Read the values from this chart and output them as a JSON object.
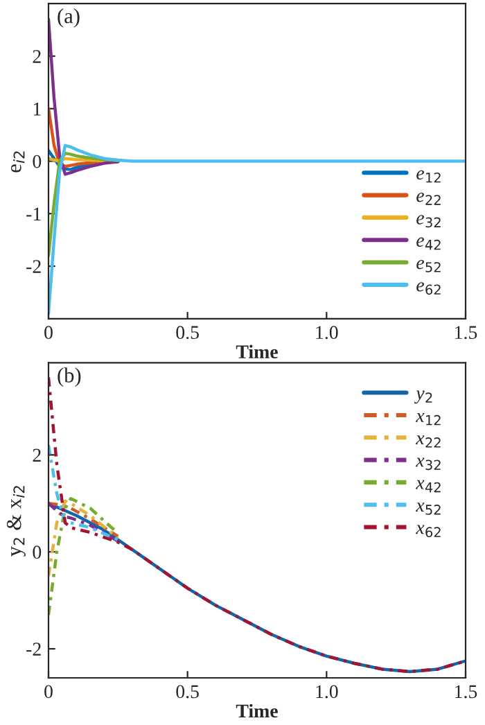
{
  "chart_data": [
    {
      "type": "line",
      "xlabel": "Time",
      "ylabel": "e$_{i2}$",
      "annotations": [
        "(a)"
      ],
      "xlim": [
        0,
        1.5
      ],
      "ylim": [
        -3,
        3
      ],
      "xticks": [
        0,
        0.5,
        {
          "value": 1,
          "label": "1.0"
        },
        1.5
      ],
      "yticks": [
        -2,
        -1,
        0,
        1,
        2
      ],
      "legend": "lower right",
      "grid": false,
      "x": [
        0,
        0.02,
        0.04,
        0.06,
        0.08,
        0.1,
        0.15,
        0.2,
        0.25,
        0.3,
        0.4,
        1.5
      ],
      "series": [
        {
          "name": "e$_{12}$",
          "color": "#0072bd",
          "line_style": "solid",
          "values": [
            0.2,
            0.05,
            -0.1,
            -0.15,
            -0.16,
            -0.12,
            -0.06,
            -0.02,
            -0.01,
            null,
            null,
            null
          ]
        },
        {
          "name": "e$_{22}$",
          "color": "#d95319",
          "line_style": "solid",
          "values": [
            1.0,
            0.3,
            -0.05,
            -0.1,
            -0.08,
            -0.06,
            -0.03,
            -0.01,
            0,
            null,
            null,
            null
          ]
        },
        {
          "name": "e$_{32}$",
          "color": "#edb120",
          "line_style": "solid",
          "values": [
            0.05,
            0.02,
            0,
            0.05,
            0.04,
            0.03,
            0.02,
            0.01,
            0,
            null,
            null,
            null
          ]
        },
        {
          "name": "e$_{42}$",
          "color": "#7e2f8e",
          "line_style": "solid",
          "values": [
            2.7,
            1.2,
            0.1,
            -0.25,
            -0.22,
            -0.18,
            -0.1,
            -0.04,
            -0.01,
            null,
            null,
            null
          ]
        },
        {
          "name": "e$_{52}$",
          "color": "#77ac30",
          "line_style": "solid",
          "values": [
            -1.8,
            -0.8,
            0,
            0.15,
            0.13,
            0.1,
            0.06,
            0.03,
            0.01,
            null,
            null,
            null
          ]
        },
        {
          "name": "e$_{62}$",
          "color": "#4dbeee",
          "line_style": "solid",
          "values": [
            -2.9,
            -1.5,
            -0.2,
            0.3,
            0.27,
            0.22,
            0.12,
            0.05,
            0.02,
            0,
            0,
            0
          ]
        }
      ]
    },
    {
      "type": "line",
      "xlabel": "Time",
      "ylabel": "y$_{2}$ & x$_{i2}$",
      "annotations": [
        "(b)"
      ],
      "xlim": [
        0,
        1.5
      ],
      "ylim": [
        -2.6,
        3.9
      ],
      "xticks": [
        0,
        0.5,
        {
          "value": 1,
          "label": "1.0"
        },
        1.5
      ],
      "yticks": [
        -2,
        0,
        2
      ],
      "legend": "top right",
      "grid": false,
      "series": [
        {
          "name": "y$_{2}$",
          "color": "#1166aa",
          "line_style": "solid",
          "x": [
            0,
            0.1,
            0.2,
            0.3,
            0.4,
            0.5,
            0.6,
            0.7,
            0.8,
            0.9,
            1.0,
            1.1,
            1.2,
            1.3,
            1.4,
            1.5
          ],
          "values": [
            1.0,
            0.75,
            0.45,
            0.05,
            -0.35,
            -0.75,
            -1.1,
            -1.4,
            -1.7,
            -1.95,
            -2.15,
            -2.3,
            -2.42,
            -2.47,
            -2.42,
            -2.25
          ]
        },
        {
          "name": "x$_{12}$",
          "color": "#cc5c2a",
          "line_style": "dashdot",
          "x": [
            0,
            0.03,
            0.06,
            0.08,
            0.15,
            0.25
          ],
          "values": [
            1.0,
            0.98,
            0.93,
            0.9,
            0.68,
            0.32
          ]
        },
        {
          "name": "x$_{22}$",
          "color": "#e3b33e",
          "line_style": "dashdot",
          "x": [
            0,
            0.03,
            0.06,
            0.08,
            0.15,
            0.25
          ],
          "values": [
            -0.5,
            0.6,
            1.05,
            1.0,
            0.75,
            0.28
          ]
        },
        {
          "name": "x$_{32}$",
          "color": "#7e2f8e",
          "line_style": "dashdot",
          "x": [
            0,
            0.03,
            0.06,
            0.08,
            0.15,
            0.25
          ],
          "values": [
            1.0,
            0.85,
            0.72,
            0.7,
            0.55,
            0.22
          ]
        },
        {
          "name": "x$_{42}$",
          "color": "#77ac30",
          "line_style": "dashdot",
          "x": [
            0,
            0.03,
            0.06,
            0.08,
            0.15,
            0.25
          ],
          "values": [
            -1.3,
            0.0,
            0.9,
            1.1,
            0.9,
            0.38
          ]
        },
        {
          "name": "x$_{52}$",
          "color": "#4dbeee",
          "line_style": "dashdot",
          "x": [
            0,
            0.03,
            0.06,
            0.08,
            0.15,
            0.25
          ],
          "values": [
            2.2,
            1.2,
            0.6,
            0.6,
            0.5,
            0.25
          ]
        },
        {
          "name": "x$_{62}$",
          "color": "#a2142f",
          "line_style": "dashdot",
          "x": [
            0,
            0.03,
            0.06,
            0.08,
            0.15,
            0.25,
            0.3,
            0.4,
            0.5,
            0.6,
            0.7,
            0.8,
            0.9,
            1.0,
            1.1,
            1.2,
            1.3,
            1.4,
            1.5
          ],
          "values": [
            3.6,
            1.8,
            0.6,
            0.5,
            0.4,
            0.2,
            0.05,
            -0.35,
            -0.75,
            -1.1,
            -1.4,
            -1.7,
            -1.95,
            -2.15,
            -2.3,
            -2.42,
            -2.47,
            -2.42,
            -2.25
          ]
        }
      ]
    }
  ]
}
